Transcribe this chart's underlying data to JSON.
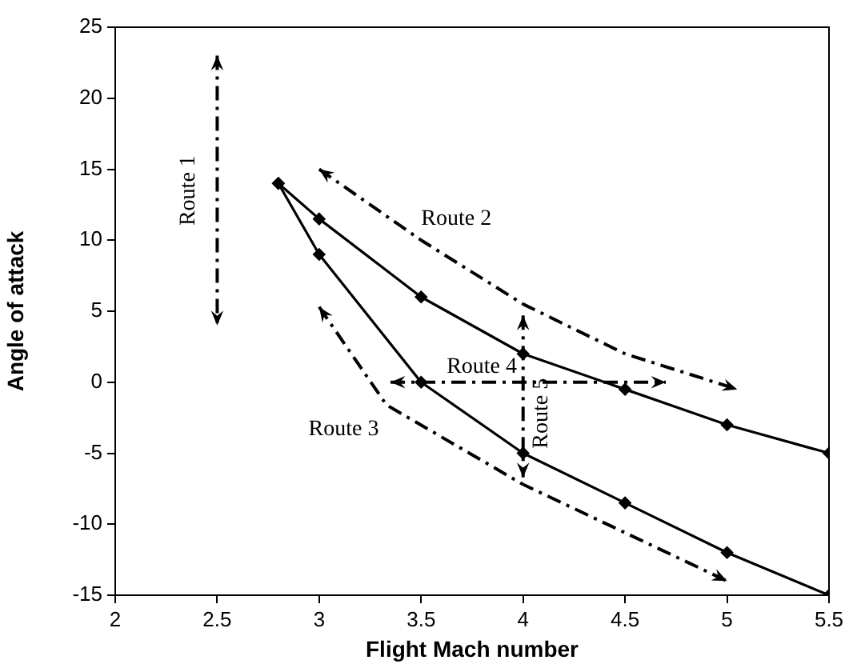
{
  "chart_data": {
    "type": "line",
    "xlabel": "Flight Mach number",
    "ylabel": "Angle of attack",
    "xlim": [
      2,
      5.5
    ],
    "xticks": [
      2,
      2.5,
      3,
      3.5,
      4,
      4.5,
      5,
      5.5
    ],
    "ylim": [
      -15,
      25
    ],
    "yticks": [
      -15,
      -10,
      -5,
      0,
      5,
      10,
      15,
      20,
      25
    ],
    "grid": false,
    "legend": false,
    "marker": "diamond",
    "annotations": [
      "Route 1",
      "Route 2",
      "Route 3",
      "Route 4",
      "Route 5"
    ],
    "series": [
      {
        "color": "#000000",
        "x": [
          2.8,
          3,
          3.5,
          4,
          4.5,
          5,
          5.5
        ],
        "values": [
          14,
          11.5,
          6,
          2,
          -0.5,
          -3,
          -5
        ]
      },
      {
        "color": "#000000",
        "x": [
          2.8,
          3,
          3.5,
          4,
          4.5,
          5,
          5.5
        ],
        "values": [
          14,
          9,
          0,
          -5,
          -8.5,
          -12,
          -15
        ]
      }
    ]
  }
}
